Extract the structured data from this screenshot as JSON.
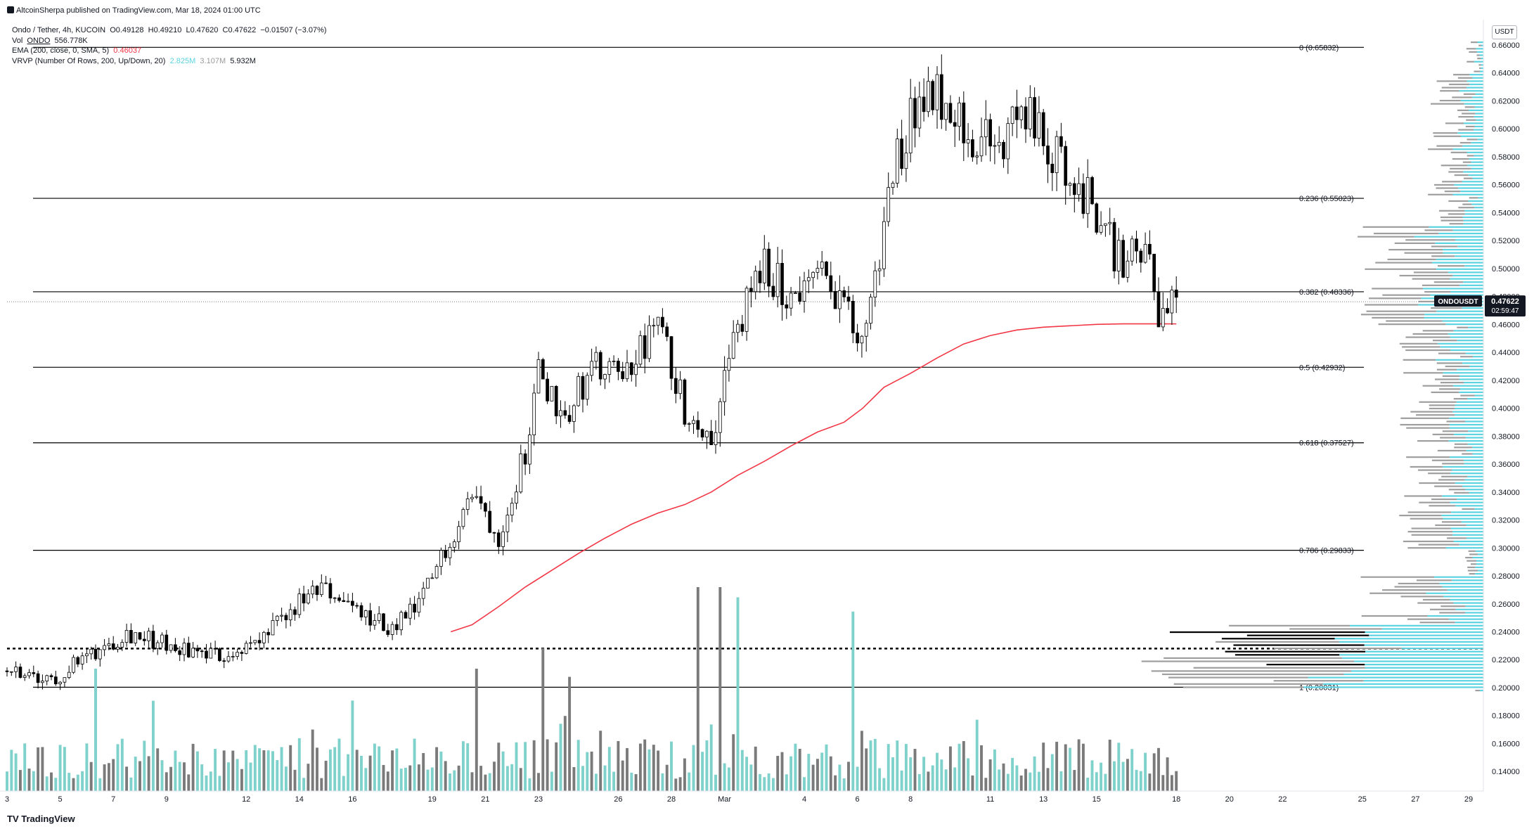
{
  "header": {
    "published": "AltcoinSherpa published on TradingView.com, Mar 18, 2024 01:00 UTC"
  },
  "legend": {
    "symbol_line": "Ondo / Tether, 4h, KUCOIN",
    "ohlc": {
      "o": "O0.49128",
      "h": "H0.49210",
      "l": "L0.47620",
      "c": "C0.47622",
      "chg": "−0.01507 (−3.07%)"
    },
    "vol_label": "Vol",
    "vol_sym": "ONDO",
    "vol_value": "556.778K",
    "ema_label": "EMA (200, close, 0, SMA, 5)",
    "ema_value": "0.46037",
    "vrvp_label": "VRVP (Number Of Rows, 200, Up/Down, 20)",
    "vrvp_up": "2.825M",
    "vrvp_down": "3.107M",
    "vrvp_total": "5.932M"
  },
  "brand": "TradingView",
  "currency": "USDT",
  "colors": {
    "bull": "#ffffff",
    "bear": "#000000",
    "ema": "#f23645",
    "vol_up": "#7fd1cb",
    "vol_down": "#7a7a7a",
    "vp_up": "#5cd3e0",
    "vp_down": "#9e9e9e",
    "grid_line": "#000000",
    "price_tag": "#131722"
  },
  "chart_data": {
    "type": "candlestick",
    "interval": "4h",
    "ylim": [
      0.126,
      0.662
    ],
    "y_ticks": [
      "0.66000",
      "0.64000",
      "0.62000",
      "0.60000",
      "0.58000",
      "0.56000",
      "0.54000",
      "0.52000",
      "0.50000",
      "0.48000",
      "0.46000",
      "0.44000",
      "0.42000",
      "0.40000",
      "0.38000",
      "0.36000",
      "0.34000",
      "0.32000",
      "0.30000",
      "0.28000",
      "0.26000",
      "0.24000",
      "0.22000",
      "0.20000",
      "0.18000",
      "0.16000",
      "0.14000"
    ],
    "x_ticks": [
      {
        "label": "3",
        "day": 0
      },
      {
        "label": "5",
        "day": 2
      },
      {
        "label": "7",
        "day": 4
      },
      {
        "label": "9",
        "day": 6
      },
      {
        "label": "12",
        "day": 9
      },
      {
        "label": "14",
        "day": 11
      },
      {
        "label": "16",
        "day": 13
      },
      {
        "label": "19",
        "day": 16
      },
      {
        "label": "21",
        "day": 18
      },
      {
        "label": "23",
        "day": 20
      },
      {
        "label": "26",
        "day": 23
      },
      {
        "label": "28",
        "day": 25
      },
      {
        "label": "Mar",
        "day": 27
      },
      {
        "label": "4",
        "day": 30
      },
      {
        "label": "6",
        "day": 32
      },
      {
        "label": "8",
        "day": 34
      },
      {
        "label": "11",
        "day": 37
      },
      {
        "label": "13",
        "day": 39
      },
      {
        "label": "15",
        "day": 41
      },
      {
        "label": "18",
        "day": 44
      },
      {
        "label": "20",
        "day": 46
      },
      {
        "label": "22",
        "day": 48
      },
      {
        "label": "25",
        "day": 51
      },
      {
        "label": "27",
        "day": 53
      },
      {
        "label": "29",
        "day": 55
      }
    ],
    "fib_levels": [
      {
        "label": "0 (0.65832)",
        "value": 0.65832
      },
      {
        "label": "0.236 (0.55023)",
        "value": 0.55023
      },
      {
        "label": "0.382 (0.48336)",
        "value": 0.48336
      },
      {
        "label": "0.5 (0.42932)",
        "value": 0.42932
      },
      {
        "label": "0.618 (0.37527)",
        "value": 0.37527
      },
      {
        "label": "0.786 (0.29833)",
        "value": 0.29833
      },
      {
        "label": "1 (0.20031)",
        "value": 0.20031
      }
    ],
    "dotted_level": 0.228,
    "last_price": {
      "symbol": "ONDOUSDT",
      "value": 0.47622,
      "price_label": "0.47622",
      "countdown": "02:59:47"
    },
    "path_keypoints": [
      [
        0,
        0.212
      ],
      [
        1.5,
        0.203
      ],
      [
        3,
        0.222
      ],
      [
        4.5,
        0.24
      ],
      [
        6.5,
        0.228
      ],
      [
        8,
        0.222
      ],
      [
        9.5,
        0.232
      ],
      [
        11,
        0.26
      ],
      [
        12,
        0.27
      ],
      [
        13.5,
        0.25
      ],
      [
        14.5,
        0.242
      ],
      [
        15.5,
        0.258
      ],
      [
        16.5,
        0.3
      ],
      [
        17.5,
        0.34
      ],
      [
        18.5,
        0.31
      ],
      [
        19.5,
        0.37
      ],
      [
        20,
        0.425
      ],
      [
        21,
        0.395
      ],
      [
        22,
        0.43
      ],
      [
        23,
        0.42
      ],
      [
        24,
        0.445
      ],
      [
        24.5,
        0.46
      ],
      [
        25.5,
        0.4
      ],
      [
        26.5,
        0.38
      ],
      [
        27.5,
        0.46
      ],
      [
        28.5,
        0.5
      ],
      [
        29.5,
        0.48
      ],
      [
        30.5,
        0.495
      ],
      [
        31.5,
        0.48
      ],
      [
        32,
        0.44
      ],
      [
        32.8,
        0.5
      ],
      [
        33.2,
        0.56
      ],
      [
        34,
        0.61
      ],
      [
        34.7,
        0.63
      ],
      [
        35.5,
        0.62
      ],
      [
        36.5,
        0.59
      ],
      [
        37.5,
        0.59
      ],
      [
        38.2,
        0.615
      ],
      [
        39,
        0.59
      ],
      [
        40,
        0.57
      ],
      [
        41,
        0.54
      ],
      [
        42,
        0.5
      ],
      [
        42.8,
        0.52
      ],
      [
        43.3,
        0.465
      ],
      [
        44,
        0.475
      ]
    ],
    "ema_points": [
      [
        16.7,
        0.24
      ],
      [
        17.5,
        0.245
      ],
      [
        18.5,
        0.258
      ],
      [
        19.5,
        0.272
      ],
      [
        20.5,
        0.284
      ],
      [
        21.5,
        0.296
      ],
      [
        22.5,
        0.307
      ],
      [
        23.5,
        0.317
      ],
      [
        24.5,
        0.325
      ],
      [
        25.5,
        0.331
      ],
      [
        26.5,
        0.34
      ],
      [
        27.5,
        0.352
      ],
      [
        28.5,
        0.362
      ],
      [
        29.5,
        0.373
      ],
      [
        30.5,
        0.383
      ],
      [
        31.5,
        0.39
      ],
      [
        32.2,
        0.4
      ],
      [
        33,
        0.415
      ],
      [
        34,
        0.425
      ],
      [
        35,
        0.436
      ],
      [
        36,
        0.446
      ],
      [
        37,
        0.452
      ],
      [
        38,
        0.456
      ],
      [
        39,
        0.458
      ],
      [
        40,
        0.459
      ],
      [
        41,
        0.46
      ],
      [
        42,
        0.4604
      ],
      [
        43,
        0.4604
      ],
      [
        44,
        0.46037
      ]
    ],
    "volume_highlights": [
      {
        "day": 26.0,
        "value": 1.0
      },
      {
        "day": 26.9,
        "value": 1.0
      },
      {
        "day": 27.5,
        "value": 0.95
      },
      {
        "day": 31.9,
        "value": 0.88
      },
      {
        "day": 20.1,
        "value": 0.7
      },
      {
        "day": 17.6,
        "value": 0.6
      },
      {
        "day": 3.4,
        "value": 0.6
      },
      {
        "day": 21.1,
        "value": 0.56
      }
    ]
  }
}
